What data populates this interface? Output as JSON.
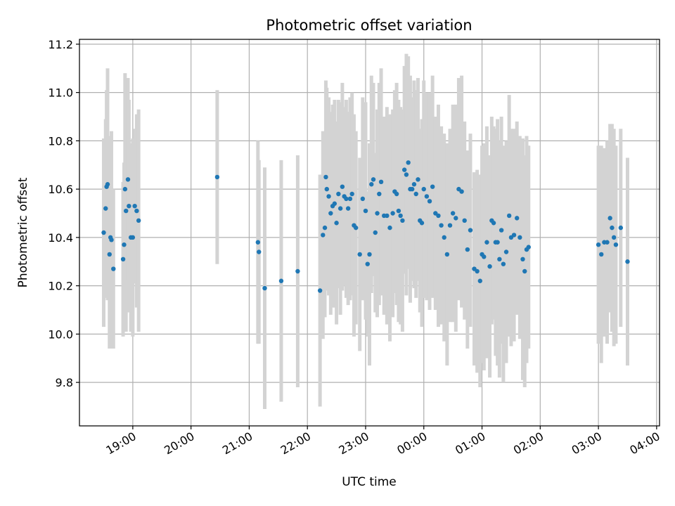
{
  "chart_data": {
    "type": "scatter",
    "title": "Photometric offset variation",
    "xlabel": "UTC time",
    "ylabel": "Photometric offset",
    "x_unit": "UTC, starting on the evening before midnight",
    "xlim": [
      "18:05",
      "04:03"
    ],
    "ylim": [
      9.62,
      11.22
    ],
    "grid": true,
    "x_ticks": [
      "19:00",
      "20:00",
      "21:00",
      "22:00",
      "23:00",
      "00:00",
      "01:00",
      "02:00",
      "03:00",
      "04:00"
    ],
    "y_ticks": [
      "9.8",
      "10.0",
      "10.2",
      "10.4",
      "10.6",
      "10.8",
      "11.0",
      "11.2"
    ],
    "colors": {
      "marker": "#1f77b4",
      "errorbar": "#d3d3d3",
      "grid": "#b0b0b0",
      "axes": "#000000"
    },
    "series": [
      {
        "x": [
          "18:30",
          "18:32",
          "18:33",
          "18:34",
          "18:36",
          "18:37",
          "18:38",
          "18:40",
          "18:50",
          "18:51",
          "18:52",
          "18:53",
          "18:55",
          "18:56",
          "18:58",
          "19:00",
          "19:02",
          "19:04",
          "19:06",
          "20:27",
          "21:09",
          "21:10",
          "21:16",
          "21:33",
          "21:50",
          "22:13",
          "22:16",
          "22:18",
          "22:19",
          "22:20",
          "22:22",
          "22:24",
          "22:26",
          "22:28",
          "22:30",
          "22:32",
          "22:34",
          "22:36",
          "22:38",
          "22:40",
          "22:42",
          "22:44",
          "22:46",
          "22:48",
          "22:50",
          "22:54",
          "22:57",
          "23:00",
          "23:02",
          "23:04",
          "23:06",
          "23:08",
          "23:10",
          "23:12",
          "23:14",
          "23:16",
          "23:19",
          "23:22",
          "23:25",
          "23:28",
          "23:30",
          "23:32",
          "23:34",
          "23:36",
          "23:38",
          "23:40",
          "23:42",
          "23:44",
          "23:46",
          "23:48",
          "23:50",
          "23:52",
          "23:54",
          "23:56",
          "23:58",
          "00:00",
          "00:03",
          "00:06",
          "00:09",
          "00:12",
          "00:15",
          "00:18",
          "00:21",
          "00:24",
          "00:27",
          "00:30",
          "00:33",
          "00:36",
          "00:39",
          "00:42",
          "00:45",
          "00:48",
          "00:52",
          "00:55",
          "00:58",
          "01:00",
          "01:02",
          "01:05",
          "01:08",
          "01:10",
          "01:12",
          "01:14",
          "01:16",
          "01:18",
          "01:20",
          "01:22",
          "01:25",
          "01:28",
          "01:30",
          "01:33",
          "01:36",
          "01:39",
          "01:42",
          "01:44",
          "01:46",
          "01:48",
          "03:00",
          "03:03",
          "03:06",
          "03:09",
          "03:12",
          "03:14",
          "03:16",
          "03:18",
          "03:23",
          "03:30"
        ],
        "y": [
          10.42,
          10.52,
          10.61,
          10.62,
          10.33,
          10.4,
          10.39,
          10.27,
          10.31,
          10.37,
          10.6,
          10.51,
          10.64,
          10.53,
          10.4,
          10.4,
          10.53,
          10.51,
          10.47,
          10.65,
          10.38,
          10.34,
          10.19,
          10.22,
          10.26,
          10.18,
          10.41,
          10.44,
          10.65,
          10.6,
          10.57,
          10.5,
          10.53,
          10.54,
          10.46,
          10.58,
          10.52,
          10.61,
          10.57,
          10.56,
          10.52,
          10.56,
          10.58,
          10.45,
          10.44,
          10.33,
          10.56,
          10.51,
          10.29,
          10.33,
          10.62,
          10.64,
          10.42,
          10.5,
          10.58,
          10.63,
          10.49,
          10.49,
          10.44,
          10.5,
          10.59,
          10.58,
          10.51,
          10.49,
          10.47,
          10.68,
          10.66,
          10.71,
          10.6,
          10.6,
          10.62,
          10.58,
          10.64,
          10.47,
          10.46,
          10.6,
          10.57,
          10.55,
          10.61,
          10.5,
          10.49,
          10.45,
          10.4,
          10.33,
          10.45,
          10.5,
          10.48,
          10.6,
          10.59,
          10.47,
          10.35,
          10.43,
          10.27,
          10.26,
          10.22,
          10.33,
          10.32,
          10.38,
          10.28,
          10.47,
          10.46,
          10.38,
          10.38,
          10.31,
          10.43,
          10.29,
          10.34,
          10.49,
          10.4,
          10.41,
          10.48,
          10.4,
          10.31,
          10.26,
          10.35,
          10.36,
          10.37,
          10.33,
          10.38,
          10.38,
          10.48,
          10.44,
          10.4,
          10.37,
          10.44,
          10.3
        ],
        "yerr": [
          0.39,
          0.37,
          0.4,
          0.48,
          0.39,
          0.42,
          0.45,
          0.33,
          0.32,
          0.34,
          0.48,
          0.5,
          0.42,
          0.44,
          0.39,
          0.41,
          0.32,
          0.4,
          0.46,
          0.36,
          0.42,
          0.38,
          0.5,
          0.5,
          0.48,
          0.48,
          0.43,
          0.37,
          0.4,
          0.42,
          0.41,
          0.42,
          0.42,
          0.43,
          0.42,
          0.39,
          0.44,
          0.43,
          0.37,
          0.41,
          0.4,
          0.42,
          0.42,
          0.46,
          0.4,
          0.4,
          0.42,
          0.45,
          0.3,
          0.46,
          0.45,
          0.4,
          0.33,
          0.43,
          0.46,
          0.47,
          0.41,
          0.45,
          0.47,
          0.43,
          0.42,
          0.46,
          0.46,
          0.45,
          0.46,
          0.43,
          0.5,
          0.44,
          0.47,
          0.38,
          0.43,
          0.43,
          0.42,
          0.38,
          0.43,
          0.45,
          0.43,
          0.45,
          0.46,
          0.4,
          0.46,
          0.41,
          0.43,
          0.46,
          0.4,
          0.45,
          0.47,
          0.46,
          0.48,
          0.41,
          0.41,
          0.4,
          0.4,
          0.42,
          0.44,
          0.45,
          0.47,
          0.48,
          0.46,
          0.43,
          0.4,
          0.47,
          0.51,
          0.49,
          0.47,
          0.49,
          0.46,
          0.5,
          0.45,
          0.44,
          0.4,
          0.42,
          0.5,
          0.48,
          0.47,
          0.42,
          0.41,
          0.45,
          0.39,
          0.42,
          0.39,
          0.43,
          0.45,
          0.41,
          0.41,
          0.43
        ]
      }
    ]
  }
}
